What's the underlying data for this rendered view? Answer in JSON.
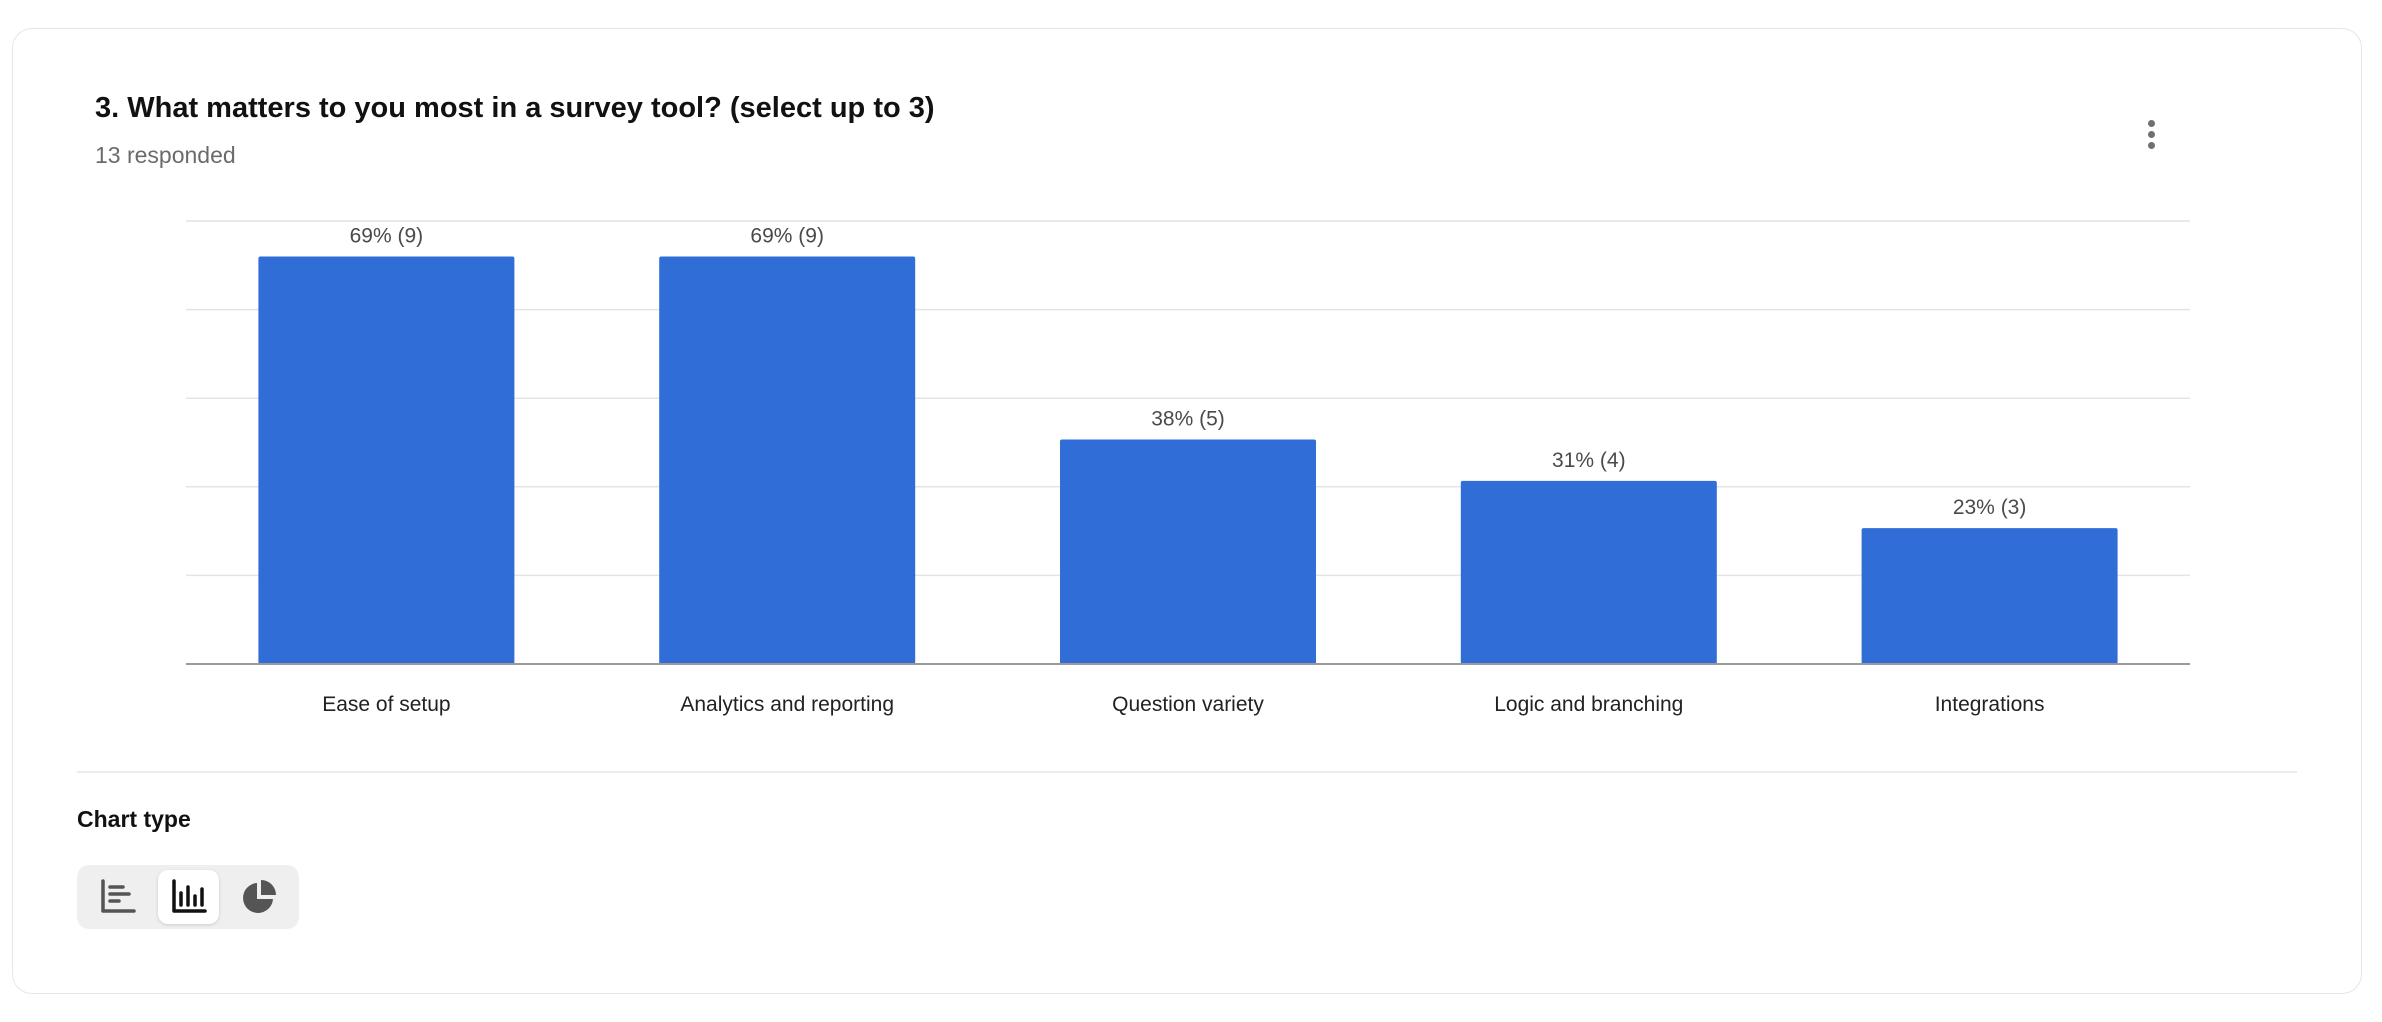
{
  "question": {
    "title": "3. What matters to you most in a survey tool? (select up to 3)",
    "responded": "13 responded"
  },
  "chart_type_section": {
    "label": "Chart type",
    "options": [
      {
        "icon": "horizontal-bar-chart-icon",
        "selected": false
      },
      {
        "icon": "vertical-bar-chart-icon",
        "selected": true
      },
      {
        "icon": "pie-chart-icon",
        "selected": false
      }
    ]
  },
  "colors": {
    "bar": "#306dd6",
    "grid": "#e4e4e4",
    "axis": "#9a9a9a",
    "label": "#4a4a4a"
  },
  "chart_data": {
    "type": "bar",
    "categories": [
      "Ease of setup",
      "Analytics and reporting",
      "Question variety",
      "Logic and branching",
      "Integrations"
    ],
    "values": [
      69,
      69,
      38,
      31,
      23
    ],
    "counts": [
      9,
      9,
      5,
      4,
      3
    ],
    "data_labels": [
      "69% (9)",
      "69% (9)",
      "38% (5)",
      "31% (4)",
      "23% (3)"
    ],
    "ylim": [
      0,
      75
    ],
    "grid": true,
    "ytick_labels_visible": false
  }
}
